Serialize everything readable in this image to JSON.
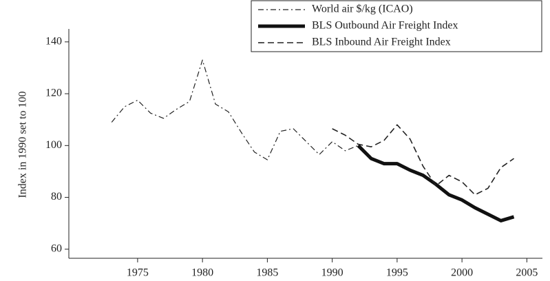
{
  "chart_data": {
    "type": "line",
    "ylabel": "Index in 1990 set to 100",
    "xlim": [
      1969.7,
      2006.2
    ],
    "xticks": [
      1975,
      1980,
      1985,
      1990,
      1995,
      2000,
      2005
    ],
    "ylim": [
      56.5,
      145
    ],
    "yticks": [
      60,
      80,
      100,
      120,
      140
    ],
    "legend": "upper right",
    "series": [
      {
        "name": "World air $/kg (ICAO)",
        "color": "#222",
        "dash": "dashdot",
        "width": 1.2,
        "x": [
          1973,
          1974,
          1975,
          1976,
          1977,
          1978,
          1979,
          1980,
          1981,
          1982,
          1983,
          1984,
          1985,
          1986,
          1987,
          1988,
          1989,
          1990,
          1991,
          1992
        ],
        "values": [
          109,
          115,
          117.5,
          112.5,
          110.5,
          114,
          117,
          133,
          116,
          113,
          105,
          97.5,
          94.5,
          105.5,
          106.5,
          101.5,
          96.5,
          101.5,
          98,
          100
        ]
      },
      {
        "name": "BLS Outbound Air Freight Index",
        "color": "#111",
        "dash": "solid",
        "width": 5,
        "x": [
          1992,
          1993,
          1994,
          1995,
          1996,
          1997,
          1998,
          1999,
          2000,
          2001,
          2002,
          2003,
          2004
        ],
        "values": [
          100,
          95,
          93,
          93,
          90.5,
          88.5,
          85,
          81,
          79,
          76,
          73.5,
          71,
          72.5
        ]
      },
      {
        "name": "BLS Inbound Air Freight Index",
        "color": "#222",
        "dash": "dashed",
        "width": 1.6,
        "x": [
          1990,
          1991,
          1992,
          1993,
          1994,
          1995,
          1996,
          1997,
          1998,
          1999,
          2000,
          2001,
          2002,
          2003,
          2004
        ],
        "values": [
          106.5,
          104,
          100.5,
          99.5,
          102,
          108,
          102.5,
          92,
          84.5,
          88.5,
          86,
          81,
          83.5,
          91.5,
          95
        ]
      }
    ]
  }
}
